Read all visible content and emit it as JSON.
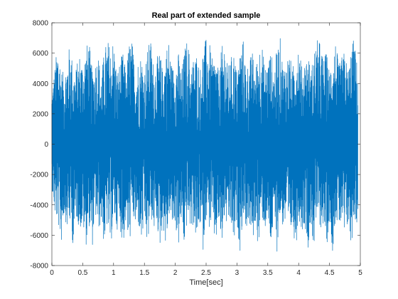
{
  "chart_data": {
    "type": "line",
    "title": "Real part of extended sample",
    "xlabel": "Time[sec]",
    "ylabel": "",
    "xlim": [
      0,
      5
    ],
    "ylim": [
      -8000,
      8000
    ],
    "x_ticks": [
      0,
      0.5,
      1,
      1.5,
      2,
      2.5,
      3,
      3.5,
      4,
      4.5,
      5
    ],
    "x_tick_labels": [
      "0",
      "0.5",
      "1",
      "1.5",
      "2",
      "2.5",
      "3",
      "3.5",
      "4",
      "4.5",
      "5"
    ],
    "y_ticks": [
      -8000,
      -6000,
      -4000,
      -2000,
      0,
      2000,
      4000,
      6000,
      8000
    ],
    "y_tick_labels": [
      "-8000",
      "-6000",
      "-4000",
      "-2000",
      "0",
      "2000",
      "4000",
      "6000",
      "8000"
    ],
    "grid": false,
    "legend": "none",
    "series_color": "#0072BD",
    "signal": {
      "x_end": 4.96,
      "peak_amplitude": 7100,
      "burst_period_sec": 0.3,
      "description_of_shape": ""
    },
    "series": [
      {
        "x_start": 0,
        "x_end": 4.96,
        "envelope_max": [
          [
            0.0,
            3600
          ],
          [
            0.05,
            5200
          ],
          [
            0.1,
            6900
          ],
          [
            0.15,
            5000
          ],
          [
            0.2,
            4600
          ],
          [
            0.25,
            5800
          ],
          [
            0.3,
            6800
          ],
          [
            0.35,
            4800
          ],
          [
            0.4,
            5200
          ],
          [
            0.45,
            6000
          ],
          [
            0.5,
            5500
          ],
          [
            0.55,
            6400
          ],
          [
            0.6,
            6900
          ],
          [
            0.65,
            5000
          ],
          [
            0.7,
            5600
          ],
          [
            0.75,
            6100
          ],
          [
            0.8,
            4600
          ],
          [
            0.85,
            6200
          ],
          [
            0.9,
            7000
          ],
          [
            0.95,
            6400
          ],
          [
            1.0,
            7050
          ],
          [
            1.05,
            4800
          ],
          [
            1.1,
            5400
          ],
          [
            1.15,
            6100
          ],
          [
            1.2,
            4900
          ],
          [
            1.25,
            6800
          ],
          [
            1.3,
            6900
          ],
          [
            1.35,
            5000
          ],
          [
            1.4,
            5600
          ],
          [
            1.45,
            6000
          ],
          [
            1.5,
            4900
          ],
          [
            1.55,
            6300
          ],
          [
            1.6,
            7050
          ],
          [
            1.65,
            5200
          ],
          [
            1.7,
            5700
          ],
          [
            1.75,
            6100
          ],
          [
            1.8,
            4800
          ],
          [
            1.85,
            6400
          ],
          [
            1.9,
            6950
          ],
          [
            1.95,
            5100
          ],
          [
            2.0,
            5500
          ],
          [
            2.05,
            6100
          ],
          [
            2.1,
            4800
          ],
          [
            2.15,
            6300
          ],
          [
            2.2,
            7100
          ],
          [
            2.25,
            5200
          ],
          [
            2.3,
            5800
          ],
          [
            2.35,
            6100
          ],
          [
            2.4,
            4900
          ],
          [
            2.45,
            6400
          ],
          [
            2.5,
            7000
          ],
          [
            2.55,
            6800
          ],
          [
            2.6,
            5600
          ],
          [
            2.65,
            6000
          ],
          [
            2.7,
            4800
          ],
          [
            2.75,
            6300
          ],
          [
            2.8,
            7050
          ],
          [
            2.85,
            5100
          ],
          [
            2.9,
            5700
          ],
          [
            2.95,
            6200
          ],
          [
            3.0,
            4800
          ],
          [
            3.05,
            6400
          ],
          [
            3.1,
            7000
          ],
          [
            3.15,
            5000
          ],
          [
            3.2,
            5600
          ],
          [
            3.25,
            6100
          ],
          [
            3.3,
            4900
          ],
          [
            3.35,
            6500
          ],
          [
            3.4,
            6950
          ],
          [
            3.45,
            5100
          ],
          [
            3.5,
            5600
          ],
          [
            3.55,
            6200
          ],
          [
            3.6,
            4800
          ],
          [
            3.65,
            6400
          ],
          [
            3.7,
            7050
          ],
          [
            3.75,
            5200
          ],
          [
            3.8,
            5700
          ],
          [
            3.85,
            6100
          ],
          [
            3.9,
            4900
          ],
          [
            3.95,
            6400
          ],
          [
            4.0,
            7000
          ],
          [
            4.05,
            5100
          ],
          [
            4.1,
            5600
          ],
          [
            4.15,
            6200
          ],
          [
            4.2,
            4800
          ],
          [
            4.25,
            6300
          ],
          [
            4.3,
            6900
          ],
          [
            4.35,
            6800
          ],
          [
            4.4,
            5700
          ],
          [
            4.45,
            6100
          ],
          [
            4.5,
            4900
          ],
          [
            4.55,
            6300
          ],
          [
            4.6,
            6900
          ],
          [
            4.65,
            5200
          ],
          [
            4.7,
            5800
          ],
          [
            4.75,
            6200
          ],
          [
            4.8,
            4800
          ],
          [
            4.85,
            6500
          ],
          [
            4.9,
            7050
          ],
          [
            4.95,
            5200
          ]
        ],
        "envelope_min": [
          [
            0.0,
            -2900
          ],
          [
            0.05,
            -4800
          ],
          [
            0.1,
            -5300
          ],
          [
            0.15,
            -6700
          ],
          [
            0.2,
            -4600
          ],
          [
            0.25,
            -5600
          ],
          [
            0.3,
            -5300
          ],
          [
            0.35,
            -6900
          ],
          [
            0.4,
            -4800
          ],
          [
            0.45,
            -5700
          ],
          [
            0.5,
            -5400
          ],
          [
            0.55,
            -6800
          ],
          [
            0.6,
            -5300
          ],
          [
            0.65,
            -7100
          ],
          [
            0.7,
            -4700
          ],
          [
            0.75,
            -5800
          ],
          [
            0.8,
            -5200
          ],
          [
            0.85,
            -6800
          ],
          [
            0.9,
            -5400
          ],
          [
            0.95,
            -7100
          ],
          [
            1.0,
            -4800
          ],
          [
            1.05,
            -5700
          ],
          [
            1.1,
            -5300
          ],
          [
            1.15,
            -6900
          ],
          [
            1.2,
            -5200
          ],
          [
            1.25,
            -7100
          ],
          [
            1.3,
            -4700
          ],
          [
            1.35,
            -5600
          ],
          [
            1.4,
            -5300
          ],
          [
            1.45,
            -6800
          ],
          [
            1.5,
            -5300
          ],
          [
            1.55,
            -7150
          ],
          [
            1.6,
            -4800
          ],
          [
            1.65,
            -5800
          ],
          [
            1.7,
            -5300
          ],
          [
            1.75,
            -6900
          ],
          [
            1.8,
            -5300
          ],
          [
            1.85,
            -7100
          ],
          [
            1.9,
            -4700
          ],
          [
            1.95,
            -5600
          ],
          [
            2.0,
            -5300
          ],
          [
            2.05,
            -6900
          ],
          [
            2.1,
            -5200
          ],
          [
            2.15,
            -7100
          ],
          [
            2.2,
            -4800
          ],
          [
            2.25,
            -5700
          ],
          [
            2.3,
            -5300
          ],
          [
            2.35,
            -6800
          ],
          [
            2.4,
            -5300
          ],
          [
            2.45,
            -7100
          ],
          [
            2.5,
            -4700
          ],
          [
            2.55,
            -5600
          ],
          [
            2.6,
            -5300
          ],
          [
            2.65,
            -6900
          ],
          [
            2.7,
            -5200
          ],
          [
            2.75,
            -7100
          ],
          [
            2.8,
            -4800
          ],
          [
            2.85,
            -5800
          ],
          [
            2.9,
            -5300
          ],
          [
            2.95,
            -6900
          ],
          [
            3.0,
            -5300
          ],
          [
            3.05,
            -7050
          ],
          [
            3.1,
            -4700
          ],
          [
            3.15,
            -5600
          ],
          [
            3.2,
            -5300
          ],
          [
            3.25,
            -6800
          ],
          [
            3.3,
            -5200
          ],
          [
            3.35,
            -7100
          ],
          [
            3.4,
            -4800
          ],
          [
            3.45,
            -5700
          ],
          [
            3.5,
            -5300
          ],
          [
            3.55,
            -6900
          ],
          [
            3.6,
            -5300
          ],
          [
            3.65,
            -7100
          ],
          [
            3.7,
            -4700
          ],
          [
            3.75,
            -5600
          ],
          [
            3.8,
            -5300
          ],
          [
            3.85,
            -6900
          ],
          [
            3.9,
            -5200
          ],
          [
            3.95,
            -7050
          ],
          [
            4.0,
            -4800
          ],
          [
            4.05,
            -5800
          ],
          [
            4.1,
            -5300
          ],
          [
            4.15,
            -6900
          ],
          [
            4.2,
            -5300
          ],
          [
            4.25,
            -7100
          ],
          [
            4.3,
            -4700
          ],
          [
            4.35,
            -5600
          ],
          [
            4.4,
            -5300
          ],
          [
            4.45,
            -6900
          ],
          [
            4.5,
            -5200
          ],
          [
            4.55,
            -7100
          ],
          [
            4.6,
            -4800
          ],
          [
            4.65,
            -5700
          ],
          [
            4.7,
            -5300
          ],
          [
            4.75,
            -6800
          ],
          [
            4.8,
            -5300
          ],
          [
            4.85,
            -7050
          ],
          [
            4.9,
            -4700
          ],
          [
            4.95,
            -5600
          ]
        ]
      }
    ]
  }
}
